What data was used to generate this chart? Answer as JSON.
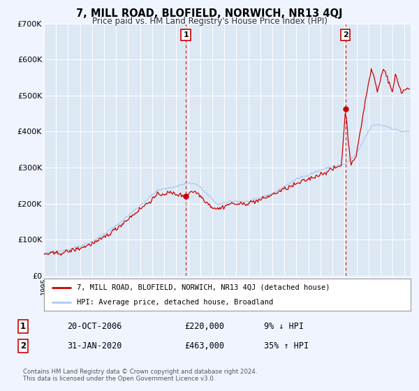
{
  "title": "7, MILL ROAD, BLOFIELD, NORWICH, NR13 4QJ",
  "subtitle": "Price paid vs. HM Land Registry's House Price Index (HPI)",
  "background_color": "#f0f4ff",
  "plot_bg_color": "#dde8f5",
  "ylim": [
    0,
    700000
  ],
  "yticks": [
    0,
    100000,
    200000,
    300000,
    400000,
    500000,
    600000,
    700000
  ],
  "ytick_labels": [
    "£0",
    "£100K",
    "£200K",
    "£300K",
    "£400K",
    "£500K",
    "£600K",
    "£700K"
  ],
  "xlim_start": 1995.0,
  "xlim_end": 2025.5,
  "marker1_x": 2006.8,
  "marker1_y": 220000,
  "marker2_x": 2020.08,
  "marker2_y": 463000,
  "sale_color": "#cc0000",
  "hpi_color": "#aaccee",
  "legend_label_sale": "7, MILL ROAD, BLOFIELD, NORWICH, NR13 4QJ (detached house)",
  "legend_label_hpi": "HPI: Average price, detached house, Broadland",
  "table_row1": [
    "1",
    "20-OCT-2006",
    "£220,000",
    "9% ↓ HPI"
  ],
  "table_row2": [
    "2",
    "31-JAN-2020",
    "£463,000",
    "35% ↑ HPI"
  ],
  "footer": "Contains HM Land Registry data © Crown copyright and database right 2024.\nThis data is licensed under the Open Government Licence v3.0."
}
